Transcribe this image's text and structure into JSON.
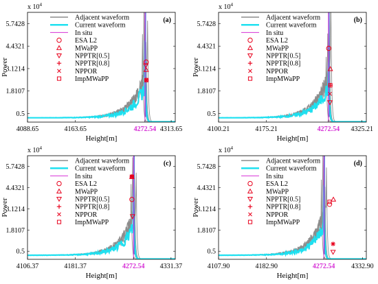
{
  "figure": {
    "ylabel": "Power",
    "xlabel": "Height[m]",
    "exponent_base": "x 10",
    "exponent_power": "4"
  },
  "colors": {
    "adjacent": "#8c8c8c",
    "current": "#1ee0f0",
    "insitu": "#d62fd6",
    "marker": "#e8001c",
    "insitu_label": "#d62fd6",
    "fitted": "#5b7fe0"
  },
  "legend_entries": [
    "Adjacent waveform",
    "Current waveform",
    "In situ",
    "ESA L2",
    "MWaPP",
    "NPPTR[0.5]",
    "NPPTR[0.8]",
    "NPPOR",
    "ImpMWaPP"
  ],
  "marker_types": [
    "circle",
    "triangle-up",
    "triangle-down",
    "plus",
    "x",
    "square"
  ],
  "chart_data": [
    {
      "panel": "(a)",
      "type": "line",
      "x_ticks": [
        "4088.65",
        "4163.65",
        "4272.54",
        "4313.65"
      ],
      "xlim": [
        4088.65,
        4320.0
      ],
      "insitu": 4272.54,
      "y_ticks": [
        "5.7428",
        "4.4321",
        "3.1214",
        "1.8107",
        "0.5"
      ],
      "y_tick_values": [
        5.7428,
        4.4321,
        3.1214,
        1.8107,
        0.5
      ],
      "ylim": [
        0,
        6.4
      ],
      "retrackers": [
        {
          "name": "ESA L2",
          "x": 4274.5,
          "y": 3.5
        },
        {
          "name": "MWaPP",
          "x": 4274.5,
          "y": 3.05
        },
        {
          "name": "NPPTR[0.5]",
          "x": 4274.0,
          "y": 3.3
        },
        {
          "name": "NPPTR[0.8]",
          "x": 4274.8,
          "y": 2.45
        },
        {
          "name": "NPPOR",
          "x": 4274.8,
          "y": 2.45
        },
        {
          "name": "ImpMWaPP",
          "x": 4274.8,
          "y": 2.45
        }
      ]
    },
    {
      "panel": "(b)",
      "type": "line",
      "x_ticks": [
        "4100.21",
        "4175.21",
        "4272.54",
        "4325.21"
      ],
      "xlim": [
        4100.21,
        4332.0
      ],
      "insitu": 4272.54,
      "y_ticks": [
        "5.7428",
        "4.4321",
        "3.1214",
        "1.8107",
        "0.5"
      ],
      "y_tick_values": [
        5.7428,
        4.4321,
        3.1214,
        1.8107,
        0.5
      ],
      "ylim": [
        0,
        6.4
      ],
      "retrackers": [
        {
          "name": "ESA L2",
          "x": 4273.0,
          "y": 4.3
        },
        {
          "name": "MWaPP",
          "x": 4275.5,
          "y": 3.1
        },
        {
          "name": "NPPTR[0.5]",
          "x": 4275.0,
          "y": 1.15
        },
        {
          "name": "NPPTR[0.8]",
          "x": 4275.5,
          "y": 2.15
        },
        {
          "name": "NPPOR",
          "x": 4275.0,
          "y": 1.65
        },
        {
          "name": "ImpMWaPP",
          "x": 4275.5,
          "y": 2.15
        }
      ]
    },
    {
      "panel": "(c)",
      "type": "line",
      "x_ticks": [
        "4106.37",
        "4181.37",
        "4272.54",
        "4331.37"
      ],
      "xlim": [
        4106.37,
        4338.0
      ],
      "insitu": 4272.54,
      "y_ticks": [
        "5.7428",
        "4.4321",
        "3.1214",
        "1.8107",
        "0.5"
      ],
      "y_tick_values": [
        5.7428,
        4.4321,
        3.1214,
        1.8107,
        0.5
      ],
      "ylim": [
        0,
        6.4
      ],
      "retrackers": [
        {
          "name": "ESA L2",
          "x": 4270.0,
          "y": 3.7
        },
        {
          "name": "MWaPP",
          "x": 4270.0,
          "y": 5.1
        },
        {
          "name": "NPPTR[0.5]",
          "x": 4271.0,
          "y": 2.65
        },
        {
          "name": "NPPTR[0.8]",
          "x": 4270.0,
          "y": 5.1
        },
        {
          "name": "NPPOR",
          "x": 4270.0,
          "y": 5.1
        },
        {
          "name": "ImpMWaPP",
          "x": 4270.0,
          "y": 5.1
        }
      ]
    },
    {
      "panel": "(d)",
      "type": "line",
      "x_ticks": [
        "4107.90",
        "4182.90",
        "4272.54",
        "4332.90"
      ],
      "xlim": [
        4107.9,
        4339.0
      ],
      "insitu": 4272.54,
      "y_ticks": [
        "5.7428",
        "4.4321",
        "3.1214",
        "1.8107",
        "0.5"
      ],
      "y_tick_values": [
        5.7428,
        4.4321,
        3.1214,
        1.8107,
        0.5
      ],
      "ylim": [
        0,
        6.4
      ],
      "retrackers": [
        {
          "name": "ESA L2",
          "x": 4281.5,
          "y": 3.4
        },
        {
          "name": "MWaPP",
          "x": 4287.5,
          "y": 3.7
        },
        {
          "name": "NPPTR[0.5]",
          "x": 4287.0,
          "y": 0.45
        },
        {
          "name": "NPPTR[0.8]",
          "x": 4287.0,
          "y": 0.95
        },
        {
          "name": "NPPOR",
          "x": 4287.0,
          "y": 0.95
        },
        {
          "name": "ImpMWaPP",
          "x": 4281.5,
          "y": 3.55
        }
      ]
    }
  ]
}
